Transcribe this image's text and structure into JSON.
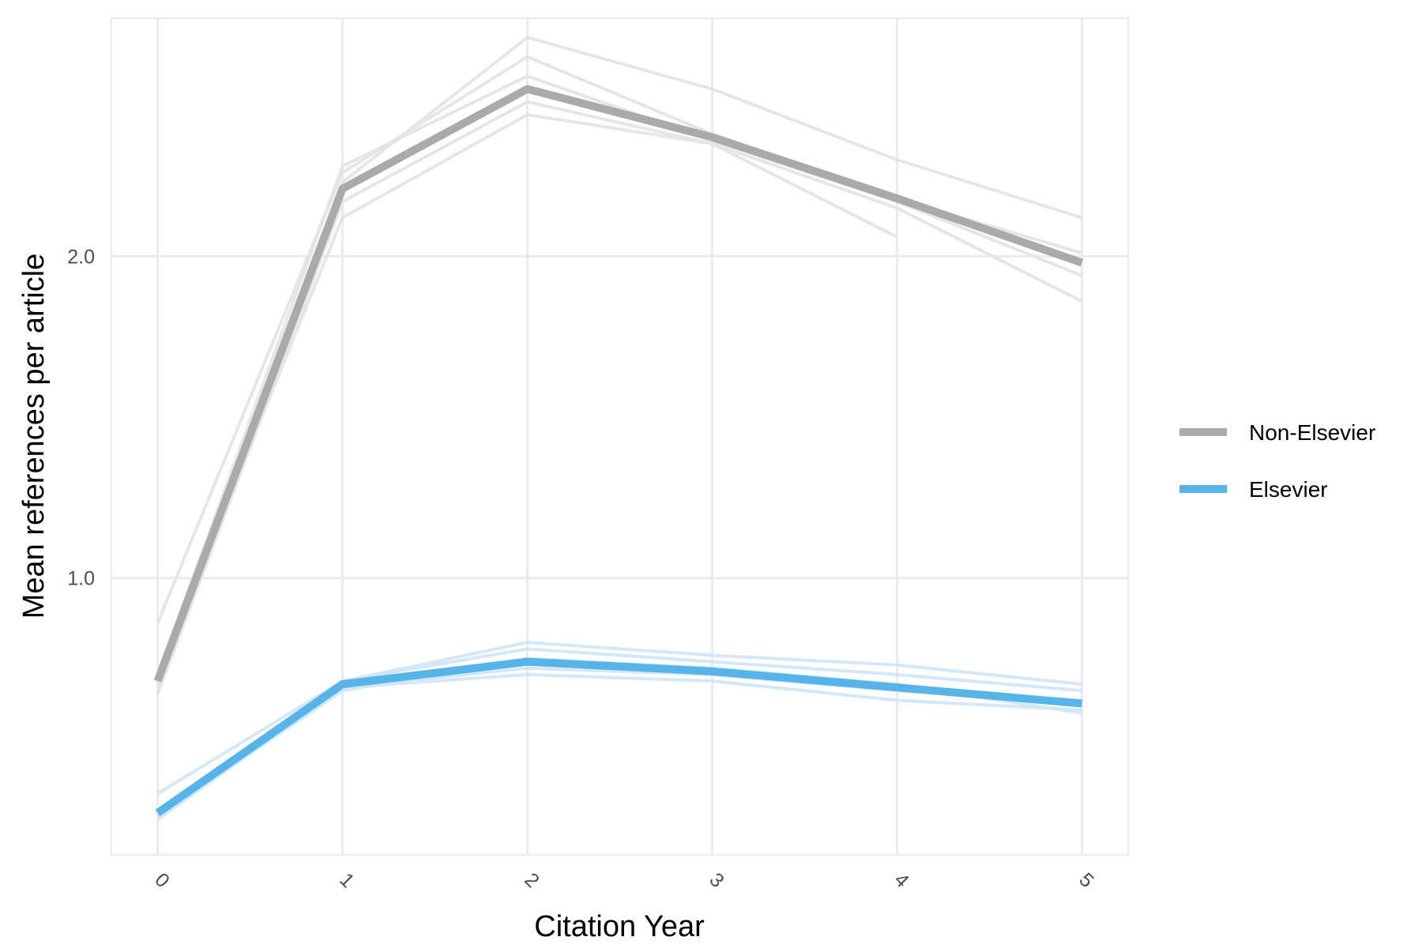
{
  "chart_data": {
    "type": "line",
    "title": "",
    "xlabel": "Citation Year",
    "ylabel": "Mean references per article",
    "x": [
      0,
      1,
      2,
      3,
      4,
      5
    ],
    "x_tick_labels": [
      "0",
      "1",
      "2",
      "3",
      "4",
      "5"
    ],
    "y_tick_values": [
      1.0,
      2.0
    ],
    "y_tick_labels": [
      "1.0",
      "2.0"
    ],
    "xlim": [
      -0.25,
      5.25
    ],
    "ylim": [
      0.14,
      2.74
    ],
    "grid": true,
    "legend_position": "right",
    "series": [
      {
        "name": "Non-Elsevier",
        "color": "#aaaaaa",
        "values": [
          0.68,
          2.21,
          2.52,
          2.37,
          2.18,
          1.98
        ]
      },
      {
        "name": "Elsevier",
        "color": "#56b4e9",
        "values": [
          0.27,
          0.67,
          0.74,
          0.71,
          0.66,
          0.61
        ]
      }
    ],
    "background_series": [
      {
        "group": "Non-Elsevier",
        "color": "#e3e3e3",
        "values": [
          0.86,
          2.26,
          2.62,
          2.38,
          2.18,
          2.01
        ]
      },
      {
        "group": "Non-Elsevier",
        "color": "#e3e3e3",
        "values": [
          0.7,
          2.28,
          2.56,
          2.36,
          2.17,
          1.94
        ]
      },
      {
        "group": "Non-Elsevier",
        "color": "#e3e3e3",
        "values": [
          0.66,
          2.23,
          2.68,
          2.52,
          2.3,
          2.12
        ]
      },
      {
        "group": "Non-Elsevier",
        "color": "#e3e3e3",
        "values": [
          0.7,
          2.12,
          2.44,
          2.35,
          2.15,
          1.86
        ]
      },
      {
        "group": "Non-Elsevier",
        "color": "#e3e3e3",
        "values": [
          0.64,
          2.17,
          2.48,
          2.35,
          2.06
        ]
      },
      {
        "group": "Elsevier",
        "color": "#cfe6f6",
        "values": [
          0.33,
          0.68,
          0.8,
          0.76,
          0.73,
          0.67
        ]
      },
      {
        "group": "Elsevier",
        "color": "#cfe6f6",
        "values": [
          0.27,
          0.68,
          0.78,
          0.74,
          0.7,
          0.65
        ]
      },
      {
        "group": "Elsevier",
        "color": "#cfe6f6",
        "values": [
          0.26,
          0.66,
          0.72,
          0.7,
          0.65,
          0.62
        ]
      },
      {
        "group": "Elsevier",
        "color": "#cfe6f6",
        "values": [
          0.25,
          0.66,
          0.7,
          0.68,
          0.62,
          0.59
        ]
      },
      {
        "group": "Elsevier",
        "color": "#cfe6f6",
        "values": [
          0.26,
          0.65,
          0.75,
          0.72,
          0.67,
          0.58
        ]
      }
    ]
  }
}
